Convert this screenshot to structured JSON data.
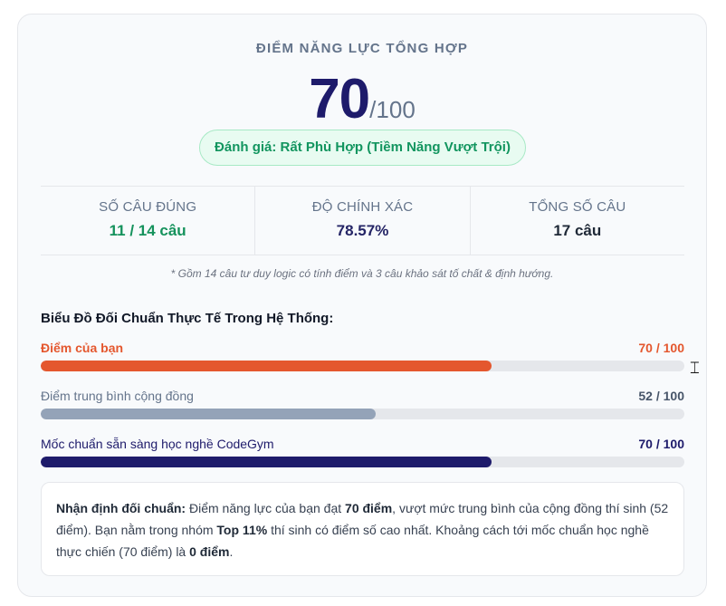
{
  "score": {
    "title": "ĐIỂM NĂNG LỰC TỔNG HỢP",
    "value": "70",
    "max": "/100",
    "rating": "Đánh giá: Rất Phù Hợp (Tiềm Năng Vượt Trội)"
  },
  "stats": [
    {
      "label": "SỐ CÂU ĐÚNG",
      "value": "11 / 14 câu"
    },
    {
      "label": "ĐỘ CHÍNH XÁC",
      "value": "78.57%"
    },
    {
      "label": "TỔNG SỐ CÂU",
      "value": "17 câu"
    }
  ],
  "footnote": "* Gồm 14 câu tư duy logic có tính điểm và 3 câu khảo sát tố chất & định hướng.",
  "benchmark": {
    "title": "Biểu Đồ Đối Chuẩn Thực Tế Trong Hệ Thống:",
    "bars": [
      {
        "label": "Điểm của bạn",
        "value_text": "70 / 100",
        "value": 70,
        "color": "#e4572e"
      },
      {
        "label": "Điểm trung bình cộng đồng",
        "value_text": "52 / 100",
        "value": 52,
        "color": "#94a3b8"
      },
      {
        "label": "Mốc chuẩn sẵn sàng học nghề CodeGym",
        "value_text": "70 / 100",
        "value": 70,
        "color": "#1e1b6b"
      }
    ],
    "max": 100
  },
  "insight": {
    "lead": "Nhận định đối chuẩn:",
    "t1": " Điểm năng lực của bạn đạt ",
    "b1": "70 điểm",
    "t2": ", vượt mức trung bình của cộng đồng thí sinh (52 điểm). Bạn nằm trong nhóm ",
    "b2": "Top 11%",
    "t3": " thí sinh có điểm số cao nhất. Khoảng cách tới mốc chuẩn học nghề thực chiến (70 điểm) là ",
    "b3": "0 điểm",
    "t4": "."
  },
  "colors": {
    "accent_orange": "#e4572e",
    "navy": "#1e1b6b",
    "green": "#15925c",
    "muted_bar": "#94a3b8"
  },
  "icons": {
    "cursor": "text-cursor-icon"
  }
}
